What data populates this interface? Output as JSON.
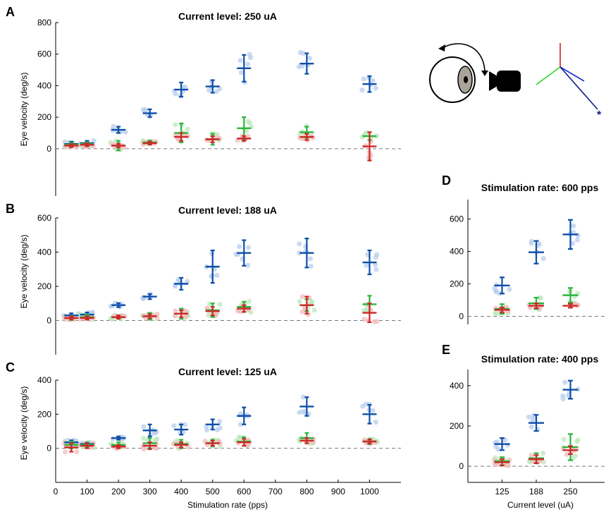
{
  "figure": {
    "colors": {
      "lpa": "#0d4fa8",
      "lara": "#2bb63b",
      "rapl": "#cc2929",
      "lpa_light": "#b9cdee",
      "lara_light": "#bde8be",
      "rapl_light": "#f2bcbc",
      "axis": "#000000",
      "zero_line": "#777777"
    },
    "inset_icons": [
      "eye-icon",
      "camera-icon",
      "rotation-arrow-icon",
      "canal-axes-icon"
    ],
    "inset_asterisk": "*"
  },
  "chart_data": [
    {
      "id": "A",
      "panel_label": "A",
      "type": "scatter",
      "title": "Current level: 250 uA",
      "ylabel": "Eye velocity (deg/s)",
      "xlabel": "",
      "xlim": [
        0,
        1100
      ],
      "ylim": [
        -300,
        800
      ],
      "yticks": [
        0,
        200,
        400,
        600,
        800
      ],
      "xticks": [],
      "x": [
        50,
        100,
        200,
        300,
        400,
        500,
        600,
        800,
        1000
      ],
      "series": [
        {
          "color_key": "lpa",
          "mean": [
            30,
            35,
            120,
            225,
            375,
            395,
            510,
            540,
            410
          ],
          "err": [
            15,
            15,
            20,
            25,
            45,
            40,
            85,
            65,
            50
          ]
        },
        {
          "color_key": "lara",
          "mean": [
            25,
            30,
            20,
            40,
            100,
            60,
            130,
            105,
            80
          ],
          "err": [
            12,
            12,
            30,
            12,
            60,
            35,
            70,
            35,
            25
          ]
        },
        {
          "color_key": "rapl",
          "mean": [
            20,
            25,
            20,
            35,
            75,
            60,
            65,
            75,
            15
          ],
          "err": [
            10,
            10,
            12,
            10,
            25,
            20,
            15,
            20,
            90
          ]
        }
      ]
    },
    {
      "id": "B",
      "panel_label": "B",
      "type": "scatter",
      "title": "Current level: 188 uA",
      "ylabel": "Eye velocity (deg/s)",
      "xlabel": "",
      "xlim": [
        0,
        1100
      ],
      "ylim": [
        -200,
        600
      ],
      "yticks": [
        0,
        200,
        400,
        600
      ],
      "xticks": [],
      "x": [
        50,
        100,
        200,
        300,
        400,
        500,
        600,
        800,
        1000
      ],
      "series": [
        {
          "color_key": "lpa",
          "mean": [
            30,
            35,
            90,
            140,
            215,
            315,
            395,
            395,
            340
          ],
          "err": [
            12,
            12,
            12,
            15,
            35,
            95,
            75,
            85,
            70
          ]
        },
        {
          "color_key": "lara",
          "mean": [
            15,
            20,
            20,
            25,
            40,
            60,
            80,
            90,
            95
          ],
          "err": [
            12,
            15,
            10,
            20,
            30,
            40,
            30,
            35,
            50
          ]
        },
        {
          "color_key": "rapl",
          "mean": [
            15,
            15,
            20,
            25,
            40,
            55,
            70,
            90,
            45
          ],
          "err": [
            10,
            10,
            10,
            12,
            20,
            25,
            20,
            50,
            55
          ]
        }
      ]
    },
    {
      "id": "C",
      "panel_label": "C",
      "type": "scatter",
      "title": "Current level: 125 uA",
      "ylabel": "Eye velocity (deg/s)",
      "xlabel": "Stimulation rate (pps)",
      "xlim": [
        0,
        1100
      ],
      "ylim": [
        -200,
        400
      ],
      "yticks": [
        0,
        200,
        400
      ],
      "xticks": [
        0,
        100,
        200,
        300,
        400,
        500,
        600,
        700,
        800,
        900,
        1000
      ],
      "x": [
        50,
        100,
        200,
        300,
        400,
        500,
        600,
        800,
        1000
      ],
      "series": [
        {
          "color_key": "lpa",
          "mean": [
            35,
            25,
            60,
            105,
            110,
            140,
            190,
            245,
            200
          ],
          "err": [
            12,
            10,
            10,
            35,
            30,
            30,
            50,
            55,
            55
          ]
        },
        {
          "color_key": "lara",
          "mean": [
            20,
            20,
            20,
            30,
            25,
            30,
            40,
            60,
            40
          ],
          "err": [
            20,
            15,
            15,
            30,
            25,
            20,
            25,
            30,
            15
          ]
        },
        {
          "color_key": "rapl",
          "mean": [
            5,
            15,
            10,
            15,
            20,
            30,
            35,
            45,
            40
          ],
          "err": [
            25,
            15,
            10,
            20,
            15,
            15,
            20,
            15,
            12
          ]
        }
      ]
    },
    {
      "id": "D",
      "panel_label": "D",
      "type": "scatter",
      "title": "Stimulation rate: 600 pps",
      "ylabel": "",
      "xlabel": "",
      "xlim": [
        0,
        4
      ],
      "ylim": [
        -50,
        720
      ],
      "yticks": [
        0,
        200,
        400,
        600
      ],
      "xticks": [],
      "x": [
        1,
        2,
        3
      ],
      "series": [
        {
          "color_key": "lpa",
          "mean": [
            190,
            395,
            505
          ],
          "err": [
            50,
            70,
            90
          ]
        },
        {
          "color_key": "lara",
          "mean": [
            45,
            80,
            130
          ],
          "err": [
            30,
            35,
            45
          ]
        },
        {
          "color_key": "rapl",
          "mean": [
            40,
            65,
            65
          ],
          "err": [
            15,
            15,
            12
          ]
        }
      ]
    },
    {
      "id": "E",
      "panel_label": "E",
      "type": "scatter",
      "title": "Stimulation rate: 400 pps",
      "ylabel": "",
      "xlabel": "Current level (uA)",
      "xlim": [
        0,
        4
      ],
      "ylim": [
        -80,
        480
      ],
      "yticks": [
        0,
        200,
        400
      ],
      "xticks": [
        1,
        2,
        3
      ],
      "xticklabels": [
        "125",
        "188",
        "250"
      ],
      "x": [
        1,
        2,
        3
      ],
      "series": [
        {
          "color_key": "lpa",
          "mean": [
            110,
            215,
            380
          ],
          "err": [
            30,
            40,
            45
          ]
        },
        {
          "color_key": "lara",
          "mean": [
            25,
            40,
            95
          ],
          "err": [
            20,
            25,
            65
          ]
        },
        {
          "color_key": "rapl",
          "mean": [
            20,
            35,
            80
          ],
          "err": [
            15,
            20,
            20
          ]
        }
      ]
    }
  ]
}
